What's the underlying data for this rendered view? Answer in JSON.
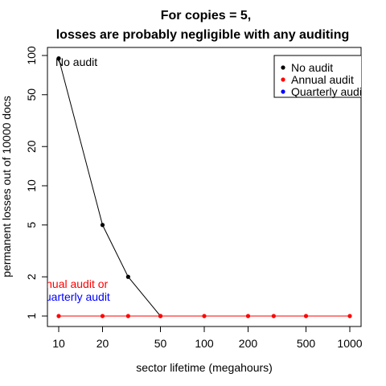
{
  "chart_data": {
    "type": "line",
    "title_line1": "For copies = 5,",
    "title_line2": "losses are probably negligible with any auditing",
    "xlabel": "sector lifetime (megahours)",
    "ylabel": "permanent losses out of 10000 docs",
    "x_scale": "log",
    "y_scale": "log",
    "xlim": [
      10,
      1000
    ],
    "ylim": [
      1,
      100
    ],
    "x_ticks": [
      10,
      20,
      50,
      100,
      200,
      500,
      1000
    ],
    "y_ticks": [
      1,
      2,
      5,
      10,
      20,
      50,
      100
    ],
    "grid": false,
    "legend_position": "top-right",
    "series": [
      {
        "name": "No audit",
        "color": "#000000",
        "x": [
          10,
          20,
          30,
          50
        ],
        "y": [
          95,
          5,
          2,
          1
        ]
      },
      {
        "name": "Annual audit",
        "color": "#ff0000",
        "x": [
          10,
          20,
          30,
          50,
          100,
          200,
          300,
          500,
          1000
        ],
        "y": [
          1,
          1,
          1,
          1,
          1,
          1,
          1,
          1,
          1
        ]
      },
      {
        "name": "Quarterly audit",
        "color": "#0000ff",
        "x": [],
        "y": []
      }
    ],
    "annotations": [
      {
        "text": "No audit",
        "color": "#000000"
      },
      {
        "text": "Annual audit or",
        "color": "#ff0000"
      },
      {
        "text": "Quarterly audit",
        "color": "#0000ff"
      }
    ]
  }
}
